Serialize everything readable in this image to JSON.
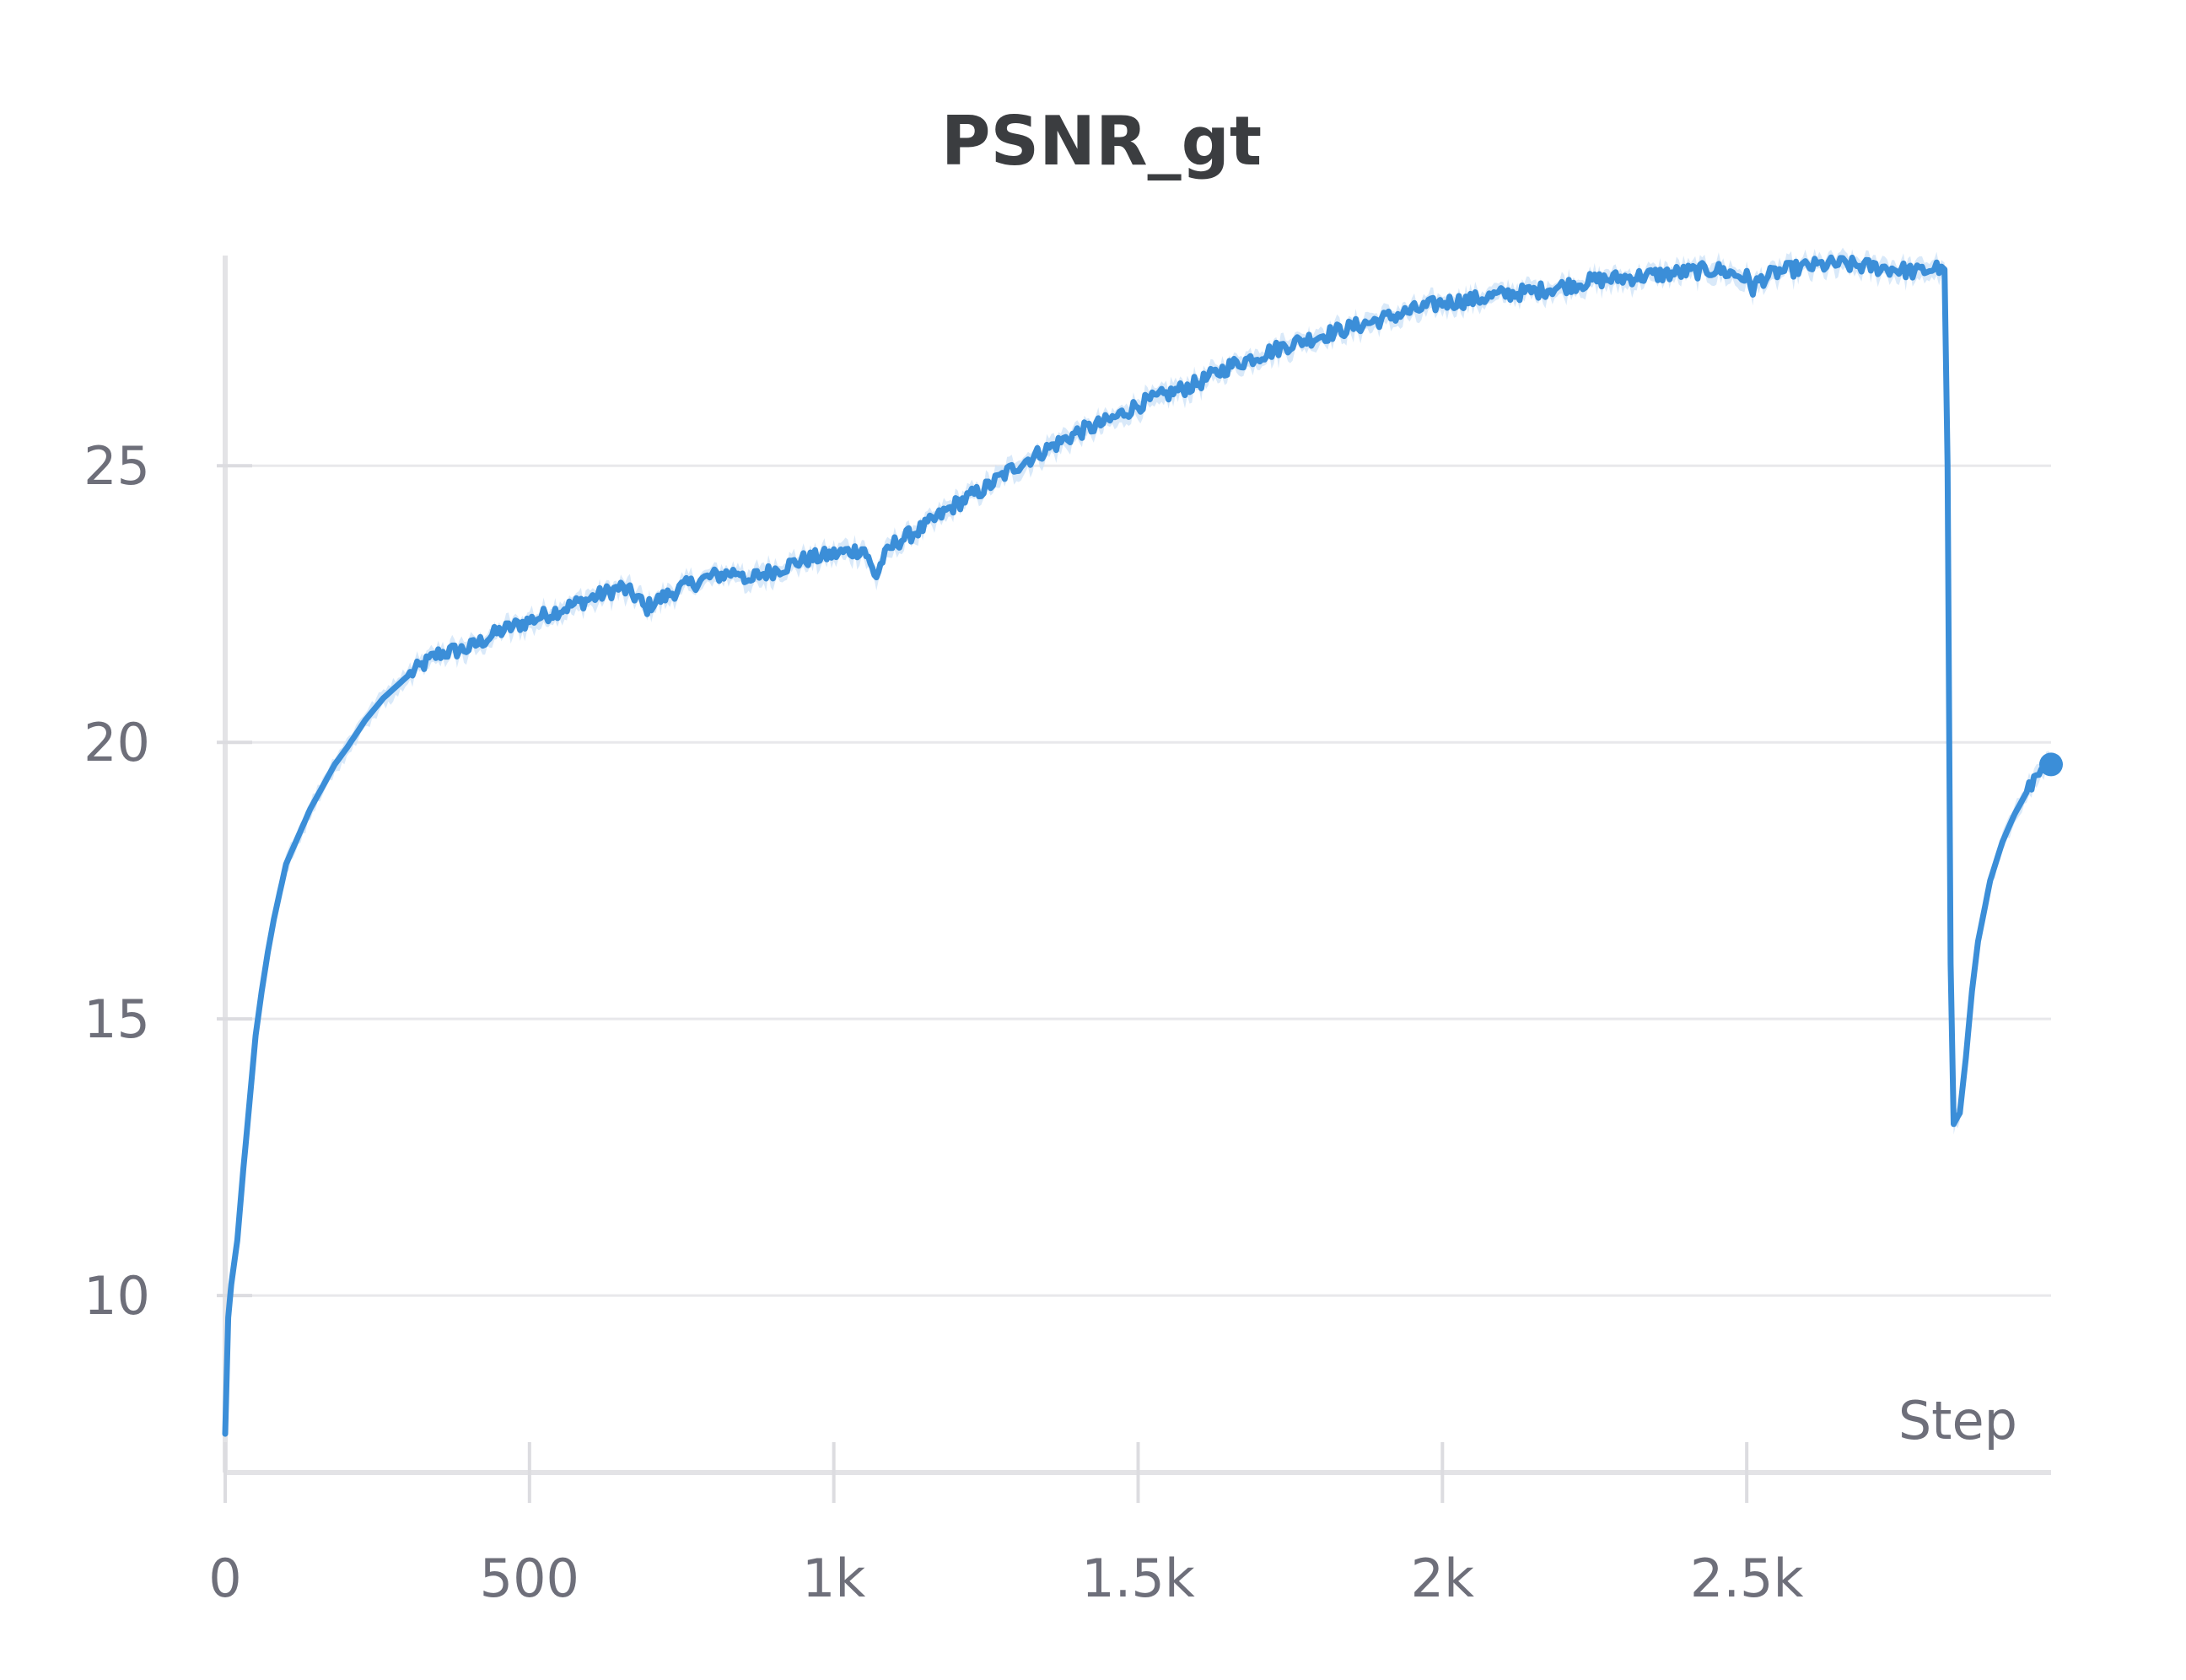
{
  "chart_data": {
    "type": "line",
    "title": "PSNR_gt",
    "xlabel": "Step",
    "ylabel": "",
    "xlim": [
      0,
      3000
    ],
    "ylim": [
      6.8,
      28.8
    ],
    "xticks": [
      0,
      500,
      1000,
      1500,
      2000,
      2500
    ],
    "xtick_labels": [
      "0",
      "500",
      "1k",
      "1.5k",
      "2k",
      "2.5k"
    ],
    "yticks": [
      10,
      15,
      20,
      25
    ],
    "ytick_labels": [
      "10",
      "15",
      "20",
      "25"
    ],
    "grid": true,
    "legend": "none",
    "color": "#3b8ed8",
    "band_color": "#cfe4f7",
    "series": [
      {
        "x": [
          0,
          5,
          10,
          20,
          30,
          40,
          50,
          60,
          70,
          80,
          90,
          100,
          120,
          140,
          160,
          180,
          200,
          230,
          260,
          300,
          350,
          400,
          450,
          500,
          550,
          600,
          650,
          680,
          690,
          700,
          750,
          800,
          850,
          860,
          870,
          900,
          950,
          1000,
          1050,
          1060,
          1070,
          1080,
          1100,
          1150,
          1200,
          1250,
          1300,
          1350,
          1400,
          1450,
          1500,
          1550,
          1600,
          1650,
          1700,
          1750,
          1800,
          1850,
          1900,
          1950,
          2000,
          2050,
          2100,
          2150,
          2200,
          2250,
          2300,
          2350,
          2400,
          2450,
          2500,
          2510,
          2520,
          2550,
          2600,
          2650,
          2700,
          2750,
          2780,
          2800,
          2820,
          2825,
          2830,
          2835,
          2840,
          2850,
          2860,
          2870,
          2880,
          2900,
          2920,
          2940,
          2960,
          2980,
          3000
        ],
        "y": [
          7.5,
          9.6,
          10.2,
          11.0,
          12.3,
          13.5,
          14.7,
          15.5,
          16.2,
          16.8,
          17.3,
          17.8,
          18.3,
          18.8,
          19.2,
          19.6,
          19.9,
          20.4,
          20.8,
          21.2,
          21.6,
          21.7,
          22.0,
          22.2,
          22.4,
          22.6,
          22.8,
          22.6,
          22.4,
          22.5,
          22.8,
          23.0,
          23.1,
          22.8,
          23.0,
          23.1,
          23.3,
          23.4,
          23.5,
          23.2,
          23.0,
          23.3,
          23.6,
          23.9,
          24.3,
          24.6,
          25.0,
          25.3,
          25.6,
          25.8,
          26.1,
          26.3,
          26.5,
          26.8,
          27.0,
          27.2,
          27.35,
          27.5,
          27.65,
          27.8,
          27.95,
          28.0,
          28.1,
          28.15,
          28.25,
          28.35,
          28.4,
          28.45,
          28.5,
          28.55,
          28.4,
          28.2,
          28.35,
          28.5,
          28.6,
          28.65,
          28.6,
          28.55,
          28.5,
          28.55,
          28.6,
          28.55,
          25.0,
          16.0,
          13.1,
          13.3,
          14.3,
          15.5,
          16.4,
          17.5,
          18.2,
          18.7,
          19.1,
          19.4,
          19.6
        ]
      }
    ]
  }
}
